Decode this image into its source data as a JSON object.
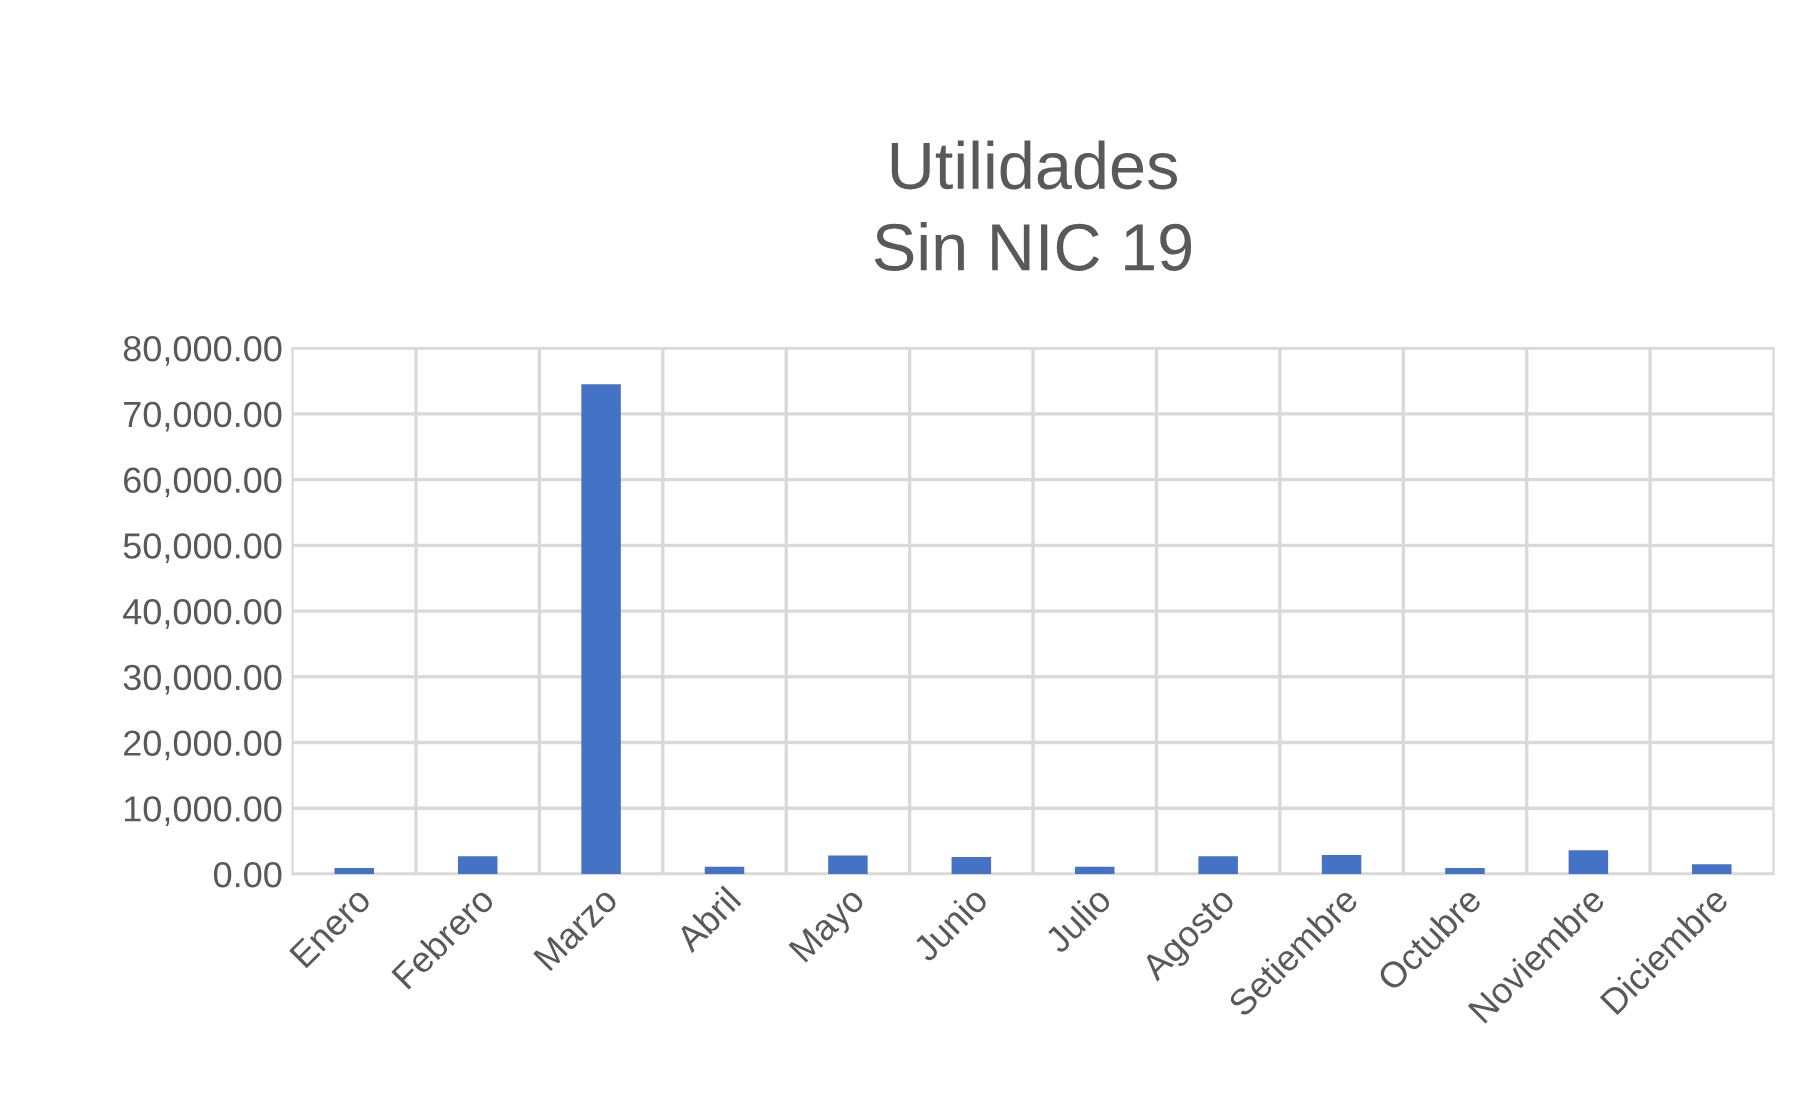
{
  "chart_data": {
    "type": "bar",
    "title": "Utilidades\nSin NIC 19",
    "categories": [
      "Enero",
      "Febrero",
      "Marzo",
      "Abril",
      "Mayo",
      "Junio",
      "Julio",
      "Agosto",
      "Setiembre",
      "Octubre",
      "Noviembre",
      "Diciembre"
    ],
    "values": [
      930,
      2700,
      74500,
      1100,
      2800,
      2600,
      1100,
      2700,
      2900,
      900,
      3600,
      1500
    ],
    "color": "#4472c4",
    "ylim": [
      0,
      80000
    ],
    "yticks": [
      {
        "value": 0,
        "label": "0.00"
      },
      {
        "value": 10000,
        "label": "10,000.00"
      },
      {
        "value": 20000,
        "label": "20,000.00"
      },
      {
        "value": 30000,
        "label": "30,000.00"
      },
      {
        "value": 40000,
        "label": "40,000.00"
      },
      {
        "value": 50000,
        "label": "50,000.00"
      },
      {
        "value": 60000,
        "label": "60,000.00"
      },
      {
        "value": 70000,
        "label": "70,000.00"
      },
      {
        "value": 80000,
        "label": "80,000.00"
      }
    ],
    "grid": true
  }
}
